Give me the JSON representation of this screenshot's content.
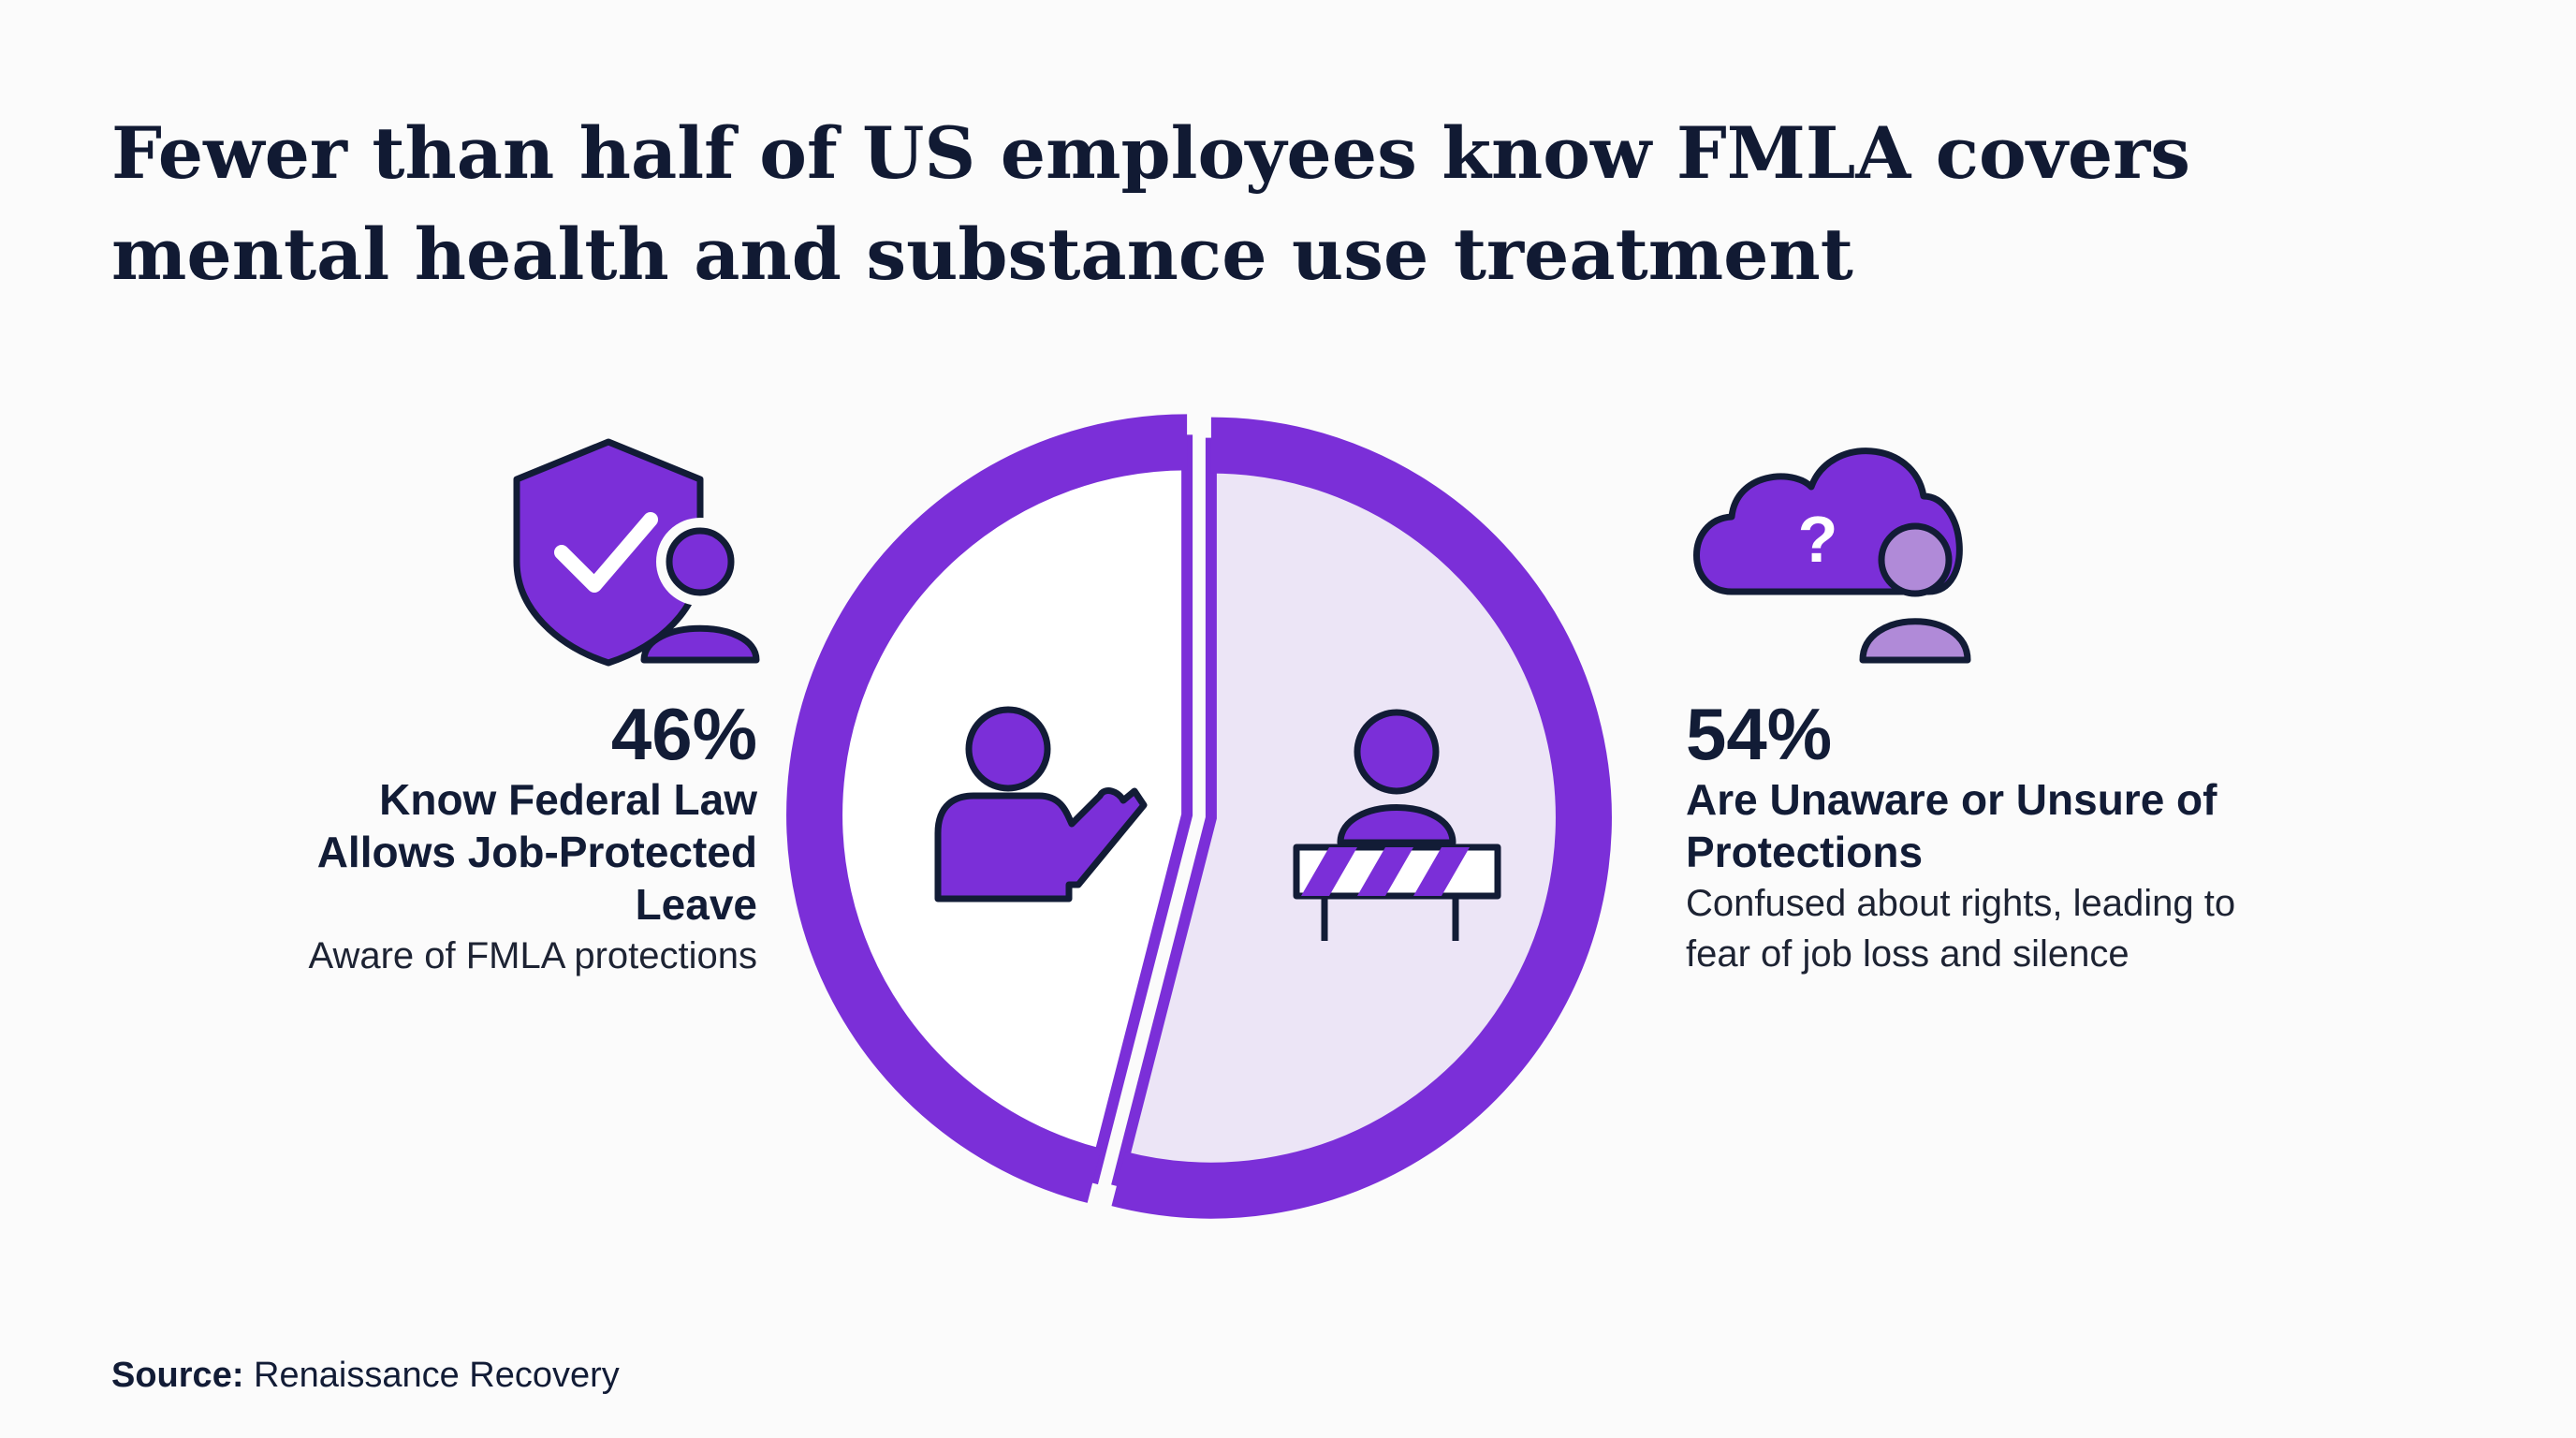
{
  "chart_data": {
    "type": "pie",
    "title": "Fewer than half of US employees know FMLA covers mental health and substance use treatment",
    "categories": [
      "Know Federal Law Allows Job-Protected Leave",
      "Are Unaware or Unsure of Protections"
    ],
    "values": [
      46,
      54
    ],
    "value_labels": [
      "46%",
      "54%"
    ],
    "descriptions": [
      "Aware of FMLA protections",
      "Confused about rights, leading to fear of job loss and silence"
    ],
    "colors": [
      "#ffffff",
      "#ece5f6"
    ],
    "ring_color": "#7b2fd8",
    "source_label": "Source:",
    "source": "Renaissance Recovery"
  }
}
